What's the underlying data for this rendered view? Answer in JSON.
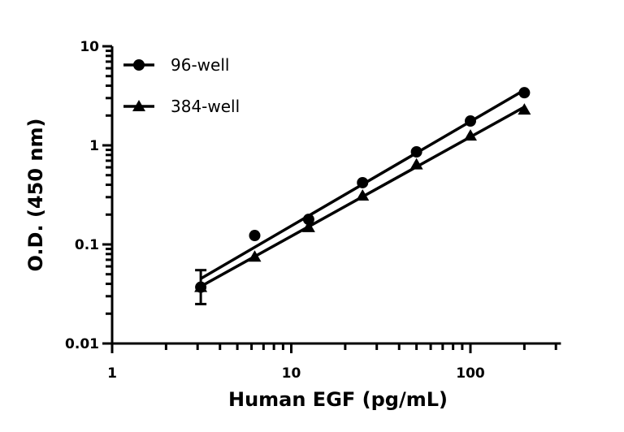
{
  "chart_data": {
    "type": "line",
    "title": "",
    "xlabel": "Human EGF (pg/mL)",
    "ylabel": "O.D. (450 nm)",
    "x_scale": "log",
    "y_scale": "log",
    "xlim": [
      1,
      320
    ],
    "ylim": [
      0.01,
      10
    ],
    "x_ticks": [
      {
        "value": 1,
        "label": "1"
      },
      {
        "value": 10,
        "label": "10"
      },
      {
        "value": 100,
        "label": "100"
      }
    ],
    "y_ticks": [
      {
        "value": 0.01,
        "label": "0.01"
      },
      {
        "value": 0.1,
        "label": "0.1"
      },
      {
        "value": 1,
        "label": "1"
      },
      {
        "value": 10,
        "label": "10"
      }
    ],
    "grid": false,
    "legend_position": "top-left",
    "color": "#000000",
    "x": [
      3.125,
      6.25,
      12.5,
      25,
      50,
      100,
      200
    ],
    "series": [
      {
        "name": "96-well",
        "marker": "circle",
        "values": [
          0.037,
          0.123,
          0.179,
          0.42,
          0.86,
          1.76,
          3.4
        ],
        "error": [
          {
            "x": 3.125,
            "low": 0.025,
            "high": 0.055
          }
        ]
      },
      {
        "name": "384-well",
        "marker": "triangle",
        "values": [
          0.037,
          0.075,
          0.149,
          0.31,
          0.64,
          1.25,
          2.29
        ]
      }
    ]
  }
}
